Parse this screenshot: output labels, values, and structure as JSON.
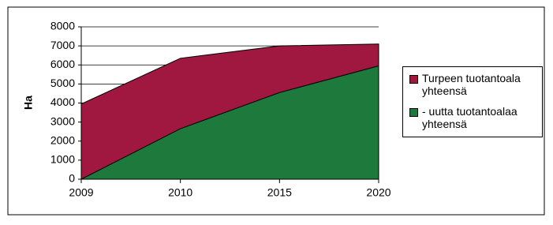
{
  "chart_data": {
    "type": "area",
    "y_label": "Ha",
    "categories": [
      "2009",
      "2010",
      "2015",
      "2020"
    ],
    "series": [
      {
        "name": "Turpeen tuotantoala yhteensä",
        "color": "#a0173f",
        "values": [
          3950,
          6350,
          7000,
          7100
        ]
      },
      {
        "name": "- uutta tuotantoalaa yhteensä",
        "color": "#1e7a3c",
        "values": [
          0,
          2650,
          4550,
          5950
        ]
      }
    ],
    "ylim": [
      0,
      8000
    ],
    "yticks": [
      0,
      1000,
      2000,
      3000,
      4000,
      5000,
      6000,
      7000,
      8000
    ],
    "grid": true,
    "legend": "right"
  }
}
